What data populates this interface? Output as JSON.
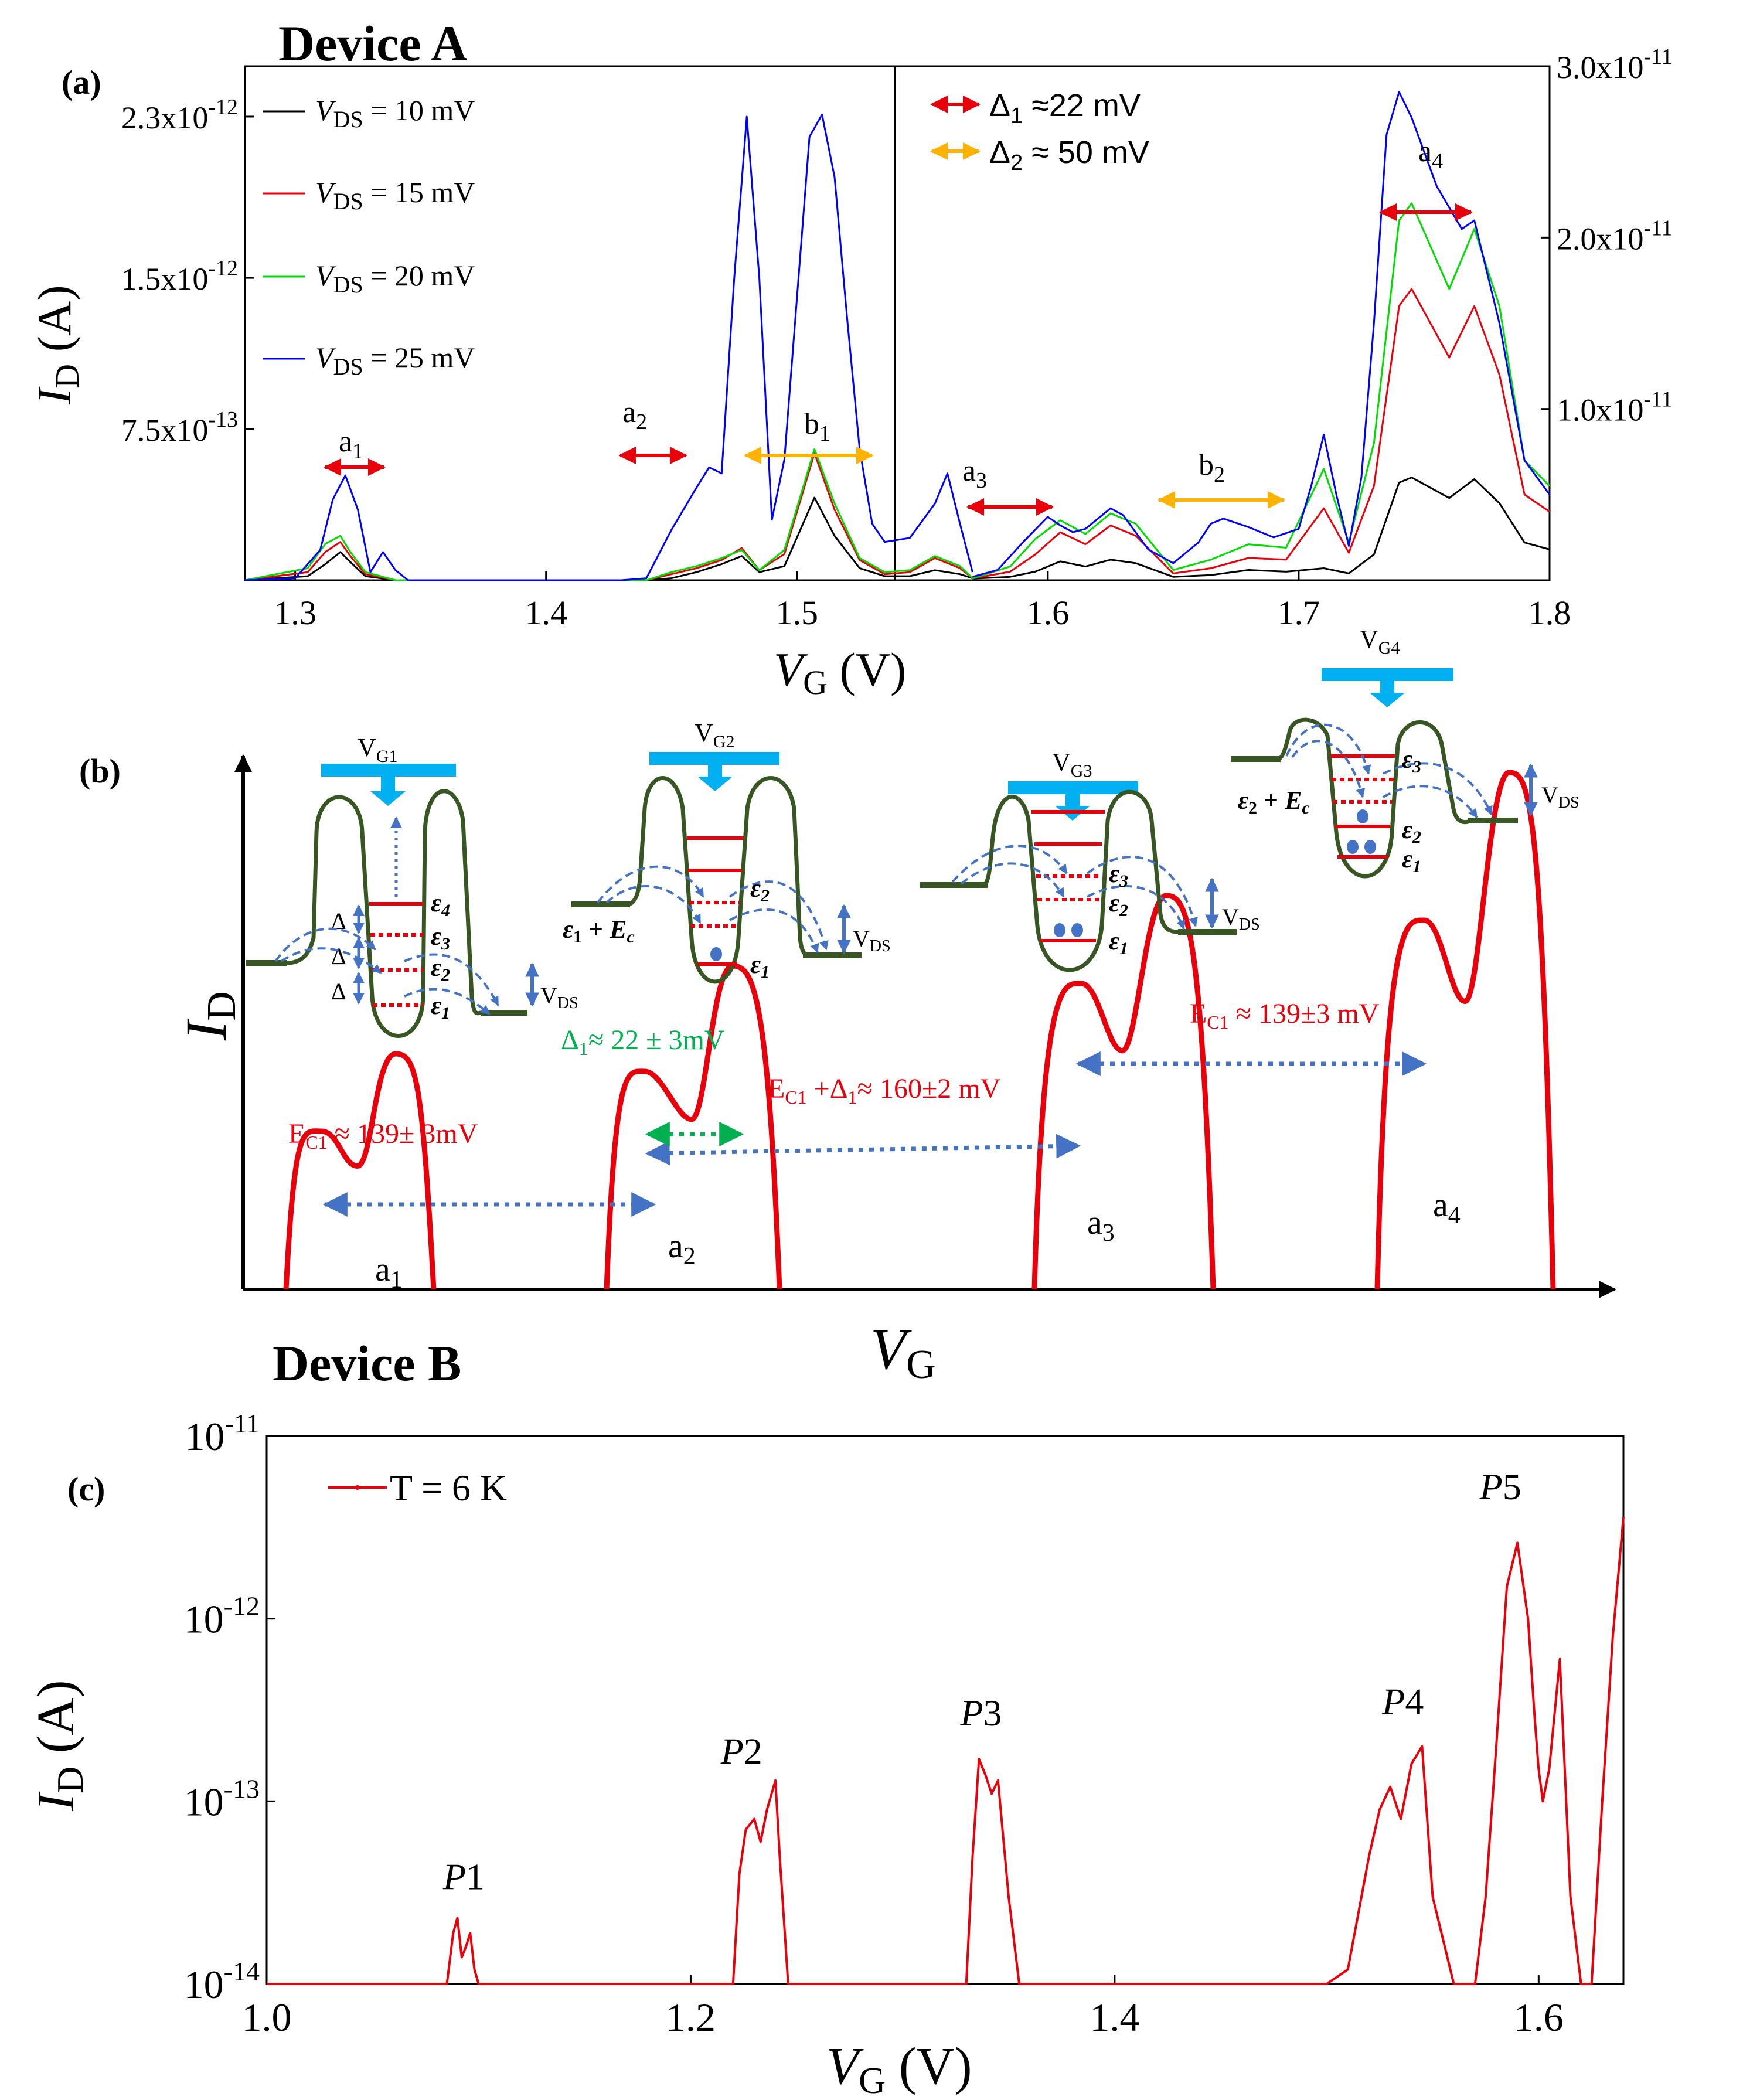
{
  "figure": {
    "device_a_title": "Device A",
    "device_b_title": "Device B",
    "panel_a_label": "(a)",
    "panel_b_label": "(b)",
    "panel_c_label": "(c)"
  },
  "chart_data": [
    {
      "id": "a",
      "type": "line",
      "xlabel": "V_G (V)",
      "ylabel": "I_D (A)",
      "xlim": [
        1.28,
        1.8
      ],
      "x_ticks": [
        "1.3",
        "1.4",
        "1.5",
        "1.6",
        "1.7",
        "1.8"
      ],
      "left_axis": {
        "range_x": [
          1.28,
          1.57
        ],
        "ylim": [
          0,
          2.55e-12
        ],
        "tick_values": [
          7.5e-13,
          1.5e-12,
          2.3e-12
        ],
        "tick_labels": [
          "7.5x10^-13",
          "1.5x10^-12",
          "2.3x10^-12"
        ]
      },
      "right_axis": {
        "range_x": [
          1.57,
          1.8
        ],
        "ylim": [
          0,
          3e-11
        ],
        "tick_values": [
          1e-11,
          2e-11,
          3e-11
        ],
        "tick_labels": [
          "1.0x10^-11",
          "2.0x10^-11",
          "3.0x10^-11"
        ]
      },
      "legend": [
        "V_DS = 10 mV",
        "V_DS = 15 mV",
        "V_DS = 20 mV",
        "V_DS = 25 mV"
      ],
      "series": [
        {
          "name": "V_DS = 10 mV",
          "color": "#000000",
          "left_x": [
            1.28,
            1.305,
            1.312,
            1.318,
            1.322,
            1.328,
            1.34,
            1.44,
            1.45,
            1.46,
            1.47,
            1.478,
            1.485,
            1.495,
            1.507,
            1.515,
            1.525,
            1.535,
            1.545,
            1.555,
            1.565,
            1.57
          ],
          "left_y": [
            0,
            2e-14,
            8e-14,
            1.4e-13,
            9e-14,
            2e-14,
            0,
            0,
            1e-14,
            4e-14,
            8e-14,
            1.2e-13,
            4e-14,
            7e-14,
            4.1e-13,
            2.2e-13,
            6e-14,
            2e-14,
            2e-14,
            5e-14,
            3e-14,
            1e-14
          ],
          "right_x": [
            1.57,
            1.585,
            1.595,
            1.605,
            1.615,
            1.625,
            1.635,
            1.65,
            1.665,
            1.68,
            1.695,
            1.71,
            1.72,
            1.73,
            1.74,
            1.745,
            1.76,
            1.77,
            1.78,
            1.79,
            1.8
          ],
          "right_y": [
            1e-13,
            2e-13,
            5e-13,
            1.1e-12,
            8e-13,
            1.2e-12,
            1e-12,
            2e-13,
            3e-13,
            6e-13,
            5e-13,
            7e-13,
            4e-13,
            1.5e-12,
            5.7e-12,
            6e-12,
            4.8e-12,
            5.9e-12,
            4.5e-12,
            2.2e-12,
            1.8e-12
          ]
        },
        {
          "name": "V_DS = 15 mV",
          "color": "#e8000b",
          "left_x": [
            1.28,
            1.305,
            1.312,
            1.318,
            1.322,
            1.328,
            1.34,
            1.44,
            1.45,
            1.46,
            1.47,
            1.478,
            1.485,
            1.495,
            1.507,
            1.515,
            1.525,
            1.535,
            1.545,
            1.555,
            1.565,
            1.57
          ],
          "left_y": [
            0,
            4e-14,
            1.4e-13,
            1.9e-13,
            1.2e-13,
            3e-14,
            0,
            0,
            3e-14,
            6e-14,
            1e-13,
            1.6e-13,
            5e-14,
            1.3e-13,
            6.3e-13,
            3.5e-13,
            1e-13,
            3e-14,
            4e-14,
            1.1e-13,
            6e-14,
            1e-14
          ],
          "right_x": [
            1.57,
            1.585,
            1.595,
            1.605,
            1.615,
            1.625,
            1.635,
            1.65,
            1.665,
            1.68,
            1.695,
            1.71,
            1.72,
            1.73,
            1.74,
            1.745,
            1.76,
            1.77,
            1.78,
            1.79,
            1.8
          ],
          "right_y": [
            1e-13,
            5e-13,
            1.5e-12,
            2.8e-12,
            2.1e-12,
            3.2e-12,
            2.6e-12,
            4e-13,
            7e-13,
            1.3e-12,
            1.2e-12,
            4.2e-12,
            1.6e-12,
            5.5e-12,
            1.6e-11,
            1.7e-11,
            1.3e-11,
            1.6e-11,
            1.2e-11,
            5e-12,
            4e-12
          ]
        },
        {
          "name": "V_DS = 20 mV",
          "color": "#00dd00",
          "left_x": [
            1.28,
            1.305,
            1.312,
            1.318,
            1.322,
            1.328,
            1.34,
            1.44,
            1.45,
            1.46,
            1.47,
            1.478,
            1.485,
            1.495,
            1.507,
            1.515,
            1.525,
            1.535,
            1.545,
            1.555,
            1.565,
            1.57
          ],
          "left_y": [
            0,
            6e-14,
            1.8e-13,
            2.2e-13,
            1.4e-13,
            4e-14,
            0,
            0,
            4e-14,
            7e-14,
            1.1e-13,
            1.5e-13,
            5e-14,
            1.5e-13,
            6.5e-13,
            3.8e-13,
            1.1e-13,
            4e-14,
            5e-14,
            1.2e-13,
            7e-14,
            1e-14
          ],
          "right_x": [
            1.57,
            1.585,
            1.595,
            1.605,
            1.615,
            1.625,
            1.635,
            1.65,
            1.665,
            1.68,
            1.695,
            1.71,
            1.72,
            1.73,
            1.74,
            1.745,
            1.76,
            1.77,
            1.78,
            1.79,
            1.8
          ],
          "right_y": [
            1e-13,
            8e-13,
            2.4e-12,
            3.5e-12,
            2.7e-12,
            3.9e-12,
            3.3e-12,
            6e-13,
            1.2e-12,
            2.1e-12,
            1.9e-12,
            6.5e-12,
            2.2e-12,
            8e-12,
            2.1e-11,
            2.2e-11,
            1.7e-11,
            2.05e-11,
            1.6e-11,
            7e-12,
            5.5e-12
          ]
        },
        {
          "name": "V_DS = 25 mV",
          "color": "#0000ff",
          "left_x": [
            1.28,
            1.3,
            1.31,
            1.315,
            1.32,
            1.325,
            1.33,
            1.335,
            1.34,
            1.345,
            1.43,
            1.44,
            1.45,
            1.46,
            1.465,
            1.47,
            1.475,
            1.48,
            1.485,
            1.49,
            1.495,
            1.5,
            1.505,
            1.51,
            1.515,
            1.52,
            1.525,
            1.53,
            1.535,
            1.545,
            1.555,
            1.56,
            1.565,
            1.57
          ],
          "left_y": [
            0,
            1e-14,
            1.5e-13,
            4e-13,
            5.2e-13,
            3.5e-13,
            4e-14,
            1.4e-13,
            5e-14,
            0,
            0,
            1e-14,
            2.5e-13,
            4.6e-13,
            5.6e-13,
            5.3e-13,
            1.5e-12,
            2.3e-12,
            1.5e-12,
            3e-13,
            6e-13,
            1.4e-12,
            2.2e-12,
            2.31e-12,
            2e-12,
            1.3e-12,
            6.5e-13,
            2.8e-13,
            1.9e-13,
            2.1e-13,
            3.8e-13,
            5.3e-13,
            2.8e-13,
            4e-14
          ],
          "right_x": [
            1.57,
            1.58,
            1.59,
            1.6,
            1.605,
            1.61,
            1.615,
            1.62,
            1.625,
            1.63,
            1.64,
            1.65,
            1.66,
            1.665,
            1.67,
            1.68,
            1.69,
            1.7,
            1.705,
            1.71,
            1.715,
            1.72,
            1.725,
            1.73,
            1.735,
            1.74,
            1.745,
            1.755,
            1.765,
            1.77,
            1.78,
            1.79,
            1.8
          ],
          "right_y": [
            2e-13,
            6e-13,
            2.2e-12,
            3.7e-12,
            3.2e-12,
            2.8e-12,
            3e-12,
            3.6e-12,
            4.2e-12,
            3.8e-12,
            1.8e-12,
            1e-12,
            2.2e-12,
            3.3e-12,
            3.6e-12,
            3.1e-12,
            2.5e-12,
            3e-12,
            5.5e-12,
            8.5e-12,
            5e-12,
            2e-12,
            6e-12,
            1.5e-11,
            2.6e-11,
            2.85e-11,
            2.7e-11,
            2.3e-11,
            2.05e-11,
            2.1e-11,
            1.5e-11,
            7e-12,
            5e-12
          ]
        }
      ],
      "annotations": {
        "peaks": [
          {
            "main": "a",
            "sub": "1"
          },
          {
            "main": "a",
            "sub": "2"
          },
          {
            "main": "b",
            "sub": "1"
          },
          {
            "main": "a",
            "sub": "3"
          },
          {
            "main": "b",
            "sub": "2"
          },
          {
            "main": "a",
            "sub": "4"
          }
        ],
        "delta1": "Δ1 ≈22 mV",
        "delta2": "Δ2 ≈ 50 mV",
        "delta1_color": "#e8000b",
        "delta2_color": "#ffb300"
      }
    },
    {
      "id": "b",
      "type": "schematic",
      "xlabel": "V_G",
      "ylabel": "I_D",
      "peaks": [
        {
          "label_main": "a",
          "label_sub": "1",
          "v1": 0.45,
          "v2": 0.67
        },
        {
          "label_main": "a",
          "label_sub": "2",
          "v1": 0.62,
          "v2": 0.92
        },
        {
          "label_main": "a",
          "label_sub": "3",
          "v1": 0.87,
          "v2": 1.12
        },
        {
          "label_main": "a",
          "label_sub": "4",
          "v1": 1.05,
          "v2": 1.47
        }
      ],
      "annotations": {
        "ec1_left": "EC1 ≈ 139± 3mV",
        "delta1": "Δ1≈ 22 ± 3mV",
        "ec1_delta": "EC1 +Δ1≈ 160±2 mV",
        "ec1_right": "EC1 ≈ 139±3 mV",
        "gate_labels": [
          "VG1",
          "VG2",
          "VG3",
          "VG4"
        ],
        "vds": "VDS",
        "level_labels": [
          "ε1",
          "ε2",
          "ε3",
          "ε4"
        ],
        "delta_symbol": "Δ",
        "eps1_ec": "ε1 + Ec",
        "eps2_ec": "ε2 + Ec",
        "colors": {
          "curve": "#e8000b",
          "barrier": "#375623",
          "gate": "#00b0f0",
          "arrow": "#4472c4",
          "green": "#00b050"
        }
      }
    },
    {
      "id": "c",
      "type": "line",
      "scale_y": "log",
      "xlabel": "V_G (V)",
      "ylabel": "I_D (A)",
      "xlim": [
        1.0,
        1.64
      ],
      "ylim": [
        1e-14,
        1e-11
      ],
      "x_ticks": [
        "1.0",
        "1.2",
        "1.4",
        "1.6"
      ],
      "y_ticks": [
        {
          "base": "10",
          "exp": "-11"
        },
        {
          "base": "10",
          "exp": "-12"
        },
        {
          "base": "10",
          "exp": "-13"
        },
        {
          "base": "10",
          "exp": "-14"
        }
      ],
      "legend": [
        "T = 6 K"
      ],
      "series": [
        {
          "name": "T = 6 K",
          "color": "#e8000b",
          "x": [
            1.0,
            1.085,
            1.088,
            1.09,
            1.092,
            1.094,
            1.096,
            1.098,
            1.1,
            1.104,
            1.22,
            1.223,
            1.226,
            1.23,
            1.233,
            1.236,
            1.24,
            1.242,
            1.246,
            1.33,
            1.333,
            1.336,
            1.339,
            1.342,
            1.345,
            1.35,
            1.355,
            1.5,
            1.51,
            1.52,
            1.525,
            1.53,
            1.535,
            1.54,
            1.545,
            1.55,
            1.56,
            1.57,
            1.575,
            1.58,
            1.585,
            1.59,
            1.595,
            1.598,
            1.6,
            1.602,
            1.605,
            1.61,
            1.615,
            1.62,
            1.625,
            1.63,
            1.635,
            1.64
          ],
          "y": [
            1e-14,
            1e-14,
            1.9e-14,
            2.3e-14,
            1.4e-14,
            1.6e-14,
            1.9e-14,
            1.2e-14,
            1e-14,
            1e-14,
            1e-14,
            4e-14,
            7e-14,
            8e-14,
            6e-14,
            9e-14,
            1.3e-13,
            5e-14,
            1e-14,
            1e-14,
            5e-14,
            1.7e-13,
            1.4e-13,
            1.1e-13,
            1.3e-13,
            3e-14,
            1e-14,
            1e-14,
            1.2e-14,
            5e-14,
            9e-14,
            1.2e-13,
            8e-14,
            1.6e-13,
            2e-13,
            3e-14,
            1e-14,
            1e-14,
            3e-14,
            2e-13,
            1.5e-12,
            2.6e-12,
            1e-12,
            3e-13,
            1.5e-13,
            1e-13,
            1.5e-13,
            6e-13,
            3e-14,
            1e-14,
            1e-14,
            1e-13,
            8e-13,
            3.6e-12
          ]
        }
      ],
      "peak_labels": [
        {
          "main": "P",
          "num": "1",
          "x": 1.093,
          "y": 3.3e-14
        },
        {
          "main": "P",
          "num": "2",
          "x": 1.224,
          "y": 1.6e-13
        },
        {
          "main": "P",
          "num": "3",
          "x": 1.337,
          "y": 2.6e-13
        },
        {
          "main": "P",
          "num": "4",
          "x": 1.536,
          "y": 3e-13
        },
        {
          "main": "P",
          "num": "5",
          "x": 1.582,
          "y": 4.5e-12
        }
      ]
    }
  ]
}
